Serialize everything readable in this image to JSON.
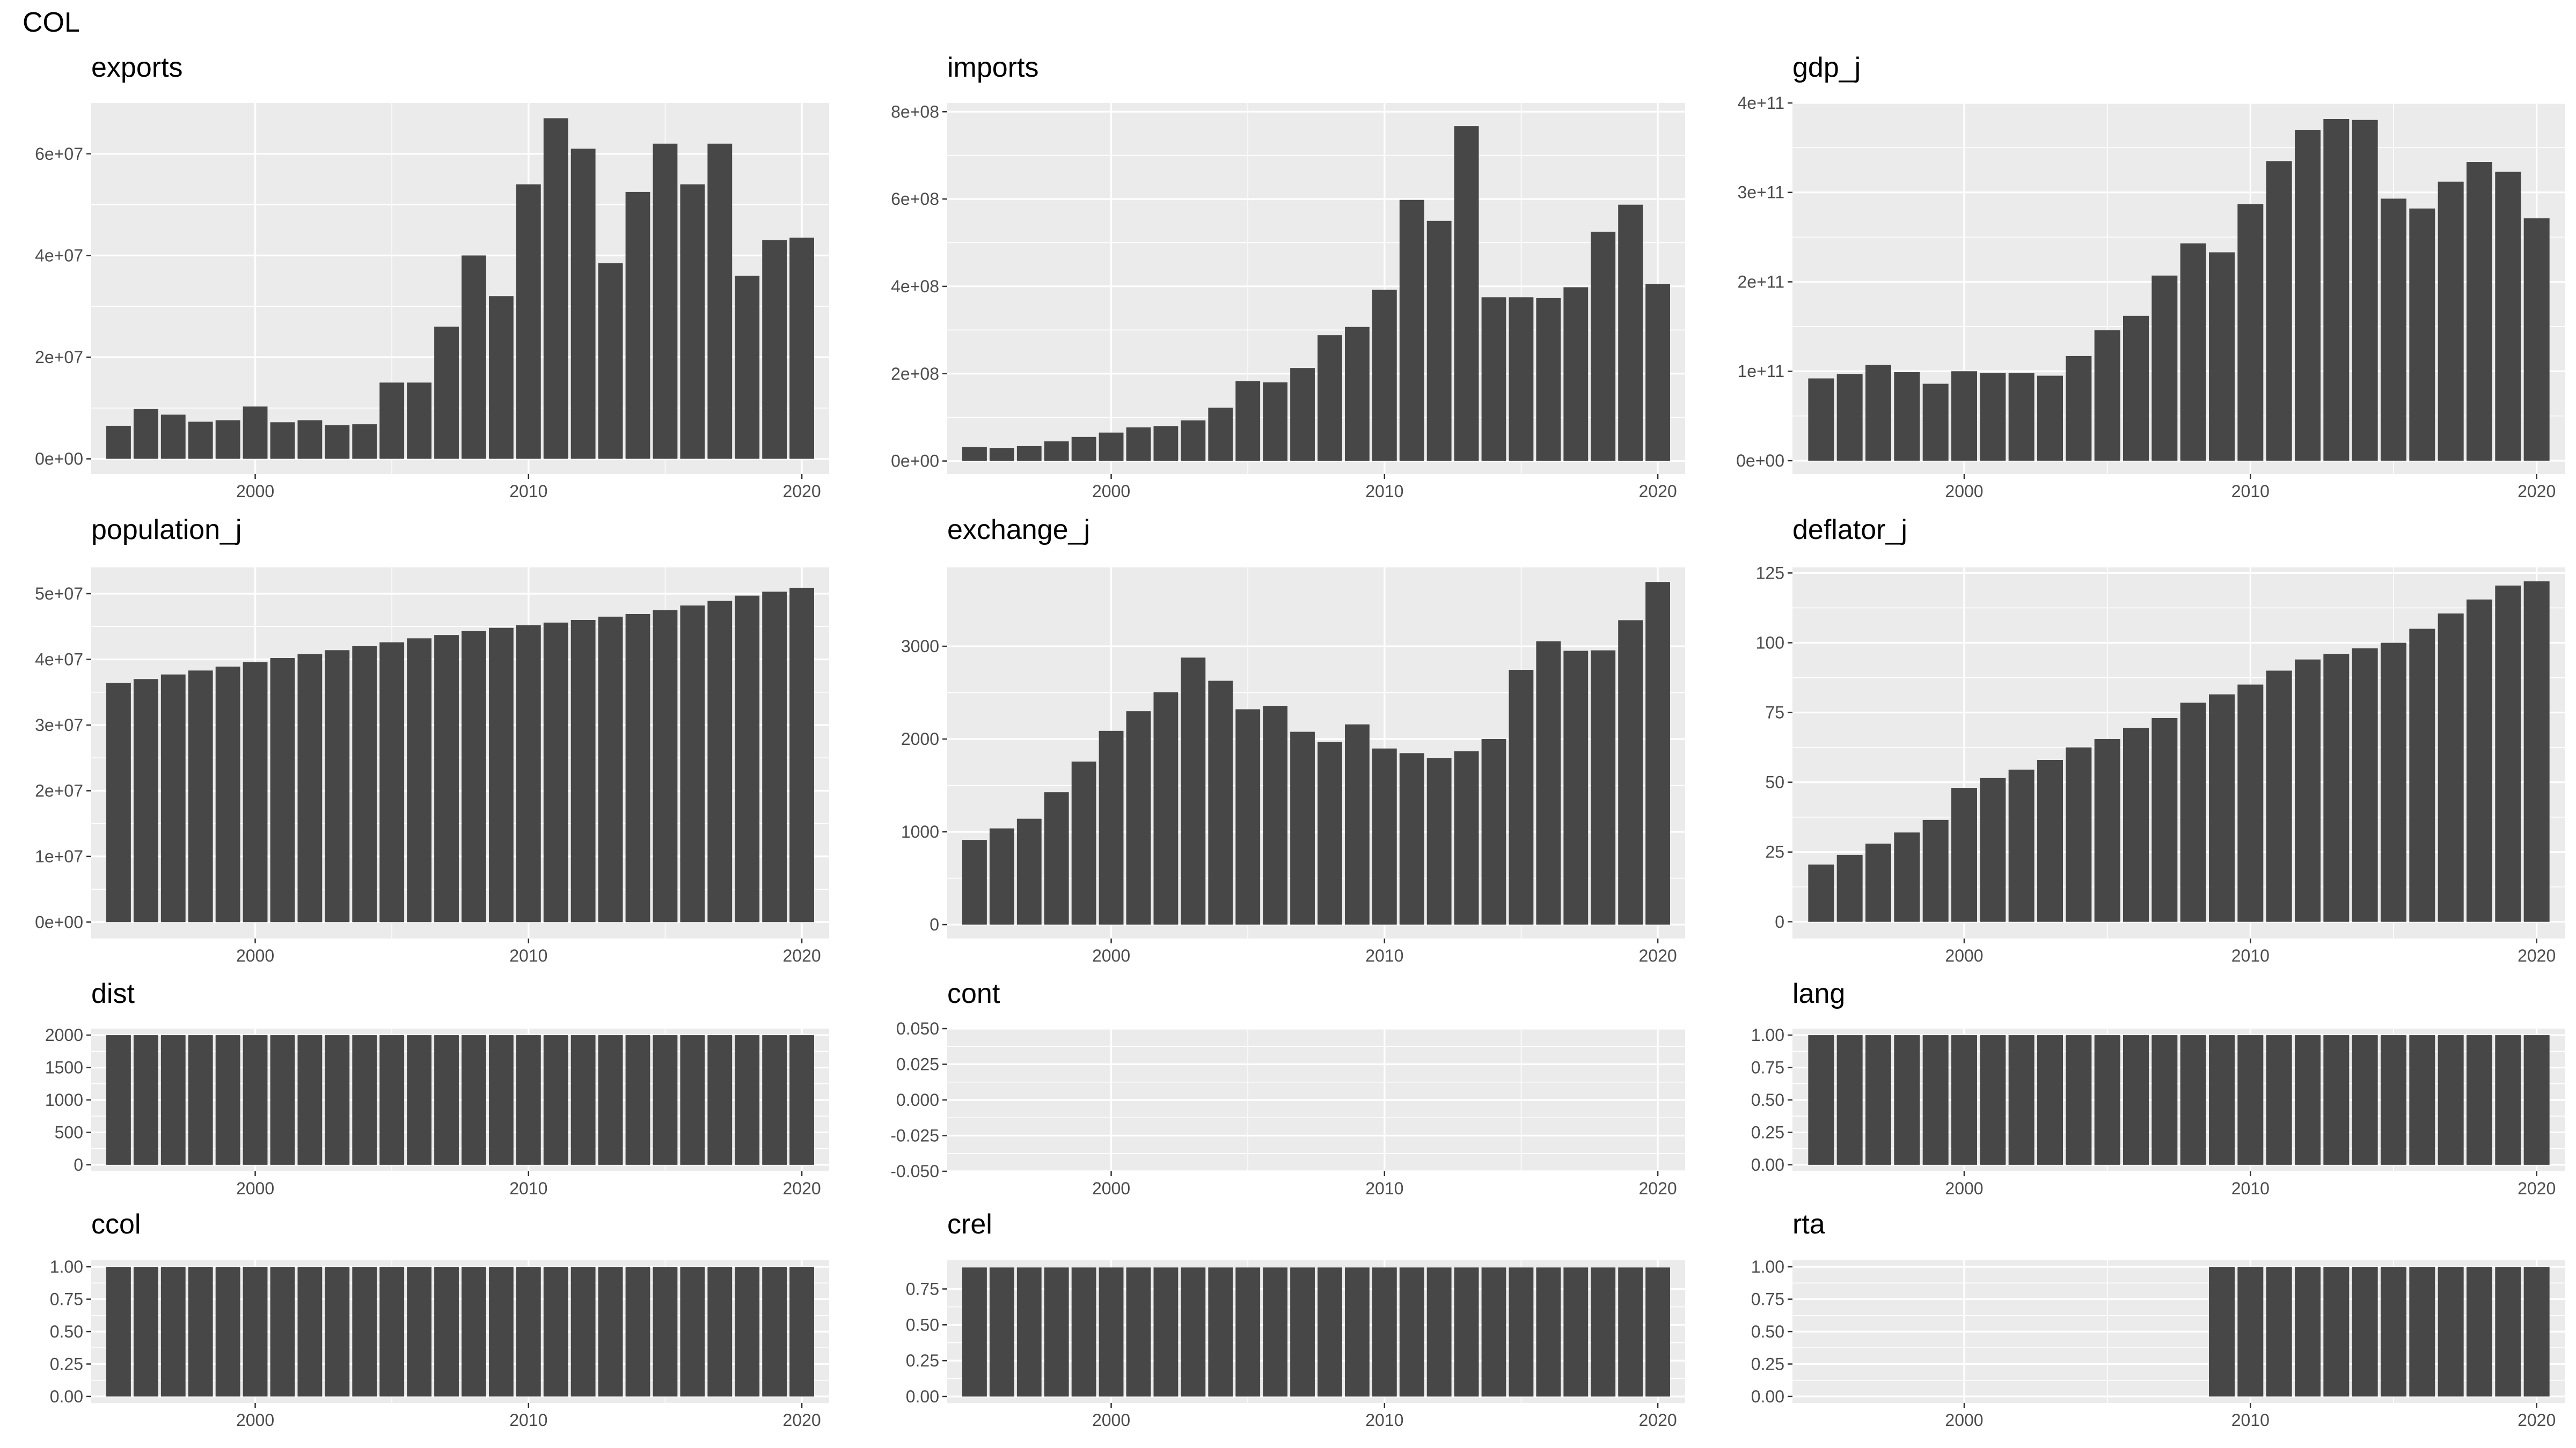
{
  "figure_title": "COL",
  "colors": {
    "panel_bg": "#ebebeb",
    "grid_major": "#ffffff",
    "bar": "#474747",
    "tick_text": "#4d4d4d"
  },
  "chart_data": [
    {
      "id": "exports",
      "type": "bar",
      "title": "exports",
      "grid": true,
      "xlim": [
        1994,
        2021
      ],
      "ylim": [
        -3000000,
        70000000
      ],
      "x_ticks": [
        2000,
        2010,
        2020
      ],
      "x_tick_labels": [
        "2000",
        "2010",
        "2020"
      ],
      "y_ticks": [
        0,
        20000000,
        40000000,
        60000000
      ],
      "y_tick_labels": [
        "0e+00",
        "2e+07",
        "4e+07",
        "6e+07"
      ],
      "x": [
        1995,
        1996,
        1997,
        1998,
        1999,
        2000,
        2001,
        2002,
        2003,
        2004,
        2005,
        2006,
        2007,
        2008,
        2009,
        2010,
        2011,
        2012,
        2013,
        2014,
        2015,
        2016,
        2017,
        2018,
        2019,
        2020
      ],
      "values": [
        6500000,
        9800000,
        8700000,
        7300000,
        7600000,
        10300000,
        7200000,
        7600000,
        6600000,
        6800000,
        15000000,
        15000000,
        26000000,
        40000000,
        32000000,
        54000000,
        67000000,
        61000000,
        38500000,
        52500000,
        62000000,
        54000000,
        62000000,
        36000000,
        43000000,
        43500000
      ]
    },
    {
      "id": "imports",
      "type": "bar",
      "title": "imports",
      "grid": true,
      "xlim": [
        1994,
        2021
      ],
      "ylim": [
        -30000000,
        820000000
      ],
      "x_ticks": [
        2000,
        2010,
        2020
      ],
      "x_tick_labels": [
        "2000",
        "2010",
        "2020"
      ],
      "y_ticks": [
        0,
        200000000,
        400000000,
        600000000,
        800000000
      ],
      "y_tick_labels": [
        "0e+00",
        "2e+08",
        "4e+08",
        "6e+08",
        "8e+08"
      ],
      "x": [
        1995,
        1996,
        1997,
        1998,
        1999,
        2000,
        2001,
        2002,
        2003,
        2004,
        2005,
        2006,
        2007,
        2008,
        2009,
        2010,
        2011,
        2012,
        2013,
        2014,
        2015,
        2016,
        2017,
        2018,
        2019,
        2020
      ],
      "values": [
        32000000,
        30000000,
        34000000,
        45000000,
        55000000,
        65000000,
        77000000,
        80000000,
        93000000,
        122000000,
        183000000,
        180000000,
        213000000,
        288000000,
        307000000,
        392000000,
        598000000,
        550000000,
        767000000,
        375000000,
        375000000,
        373000000,
        398000000,
        525000000,
        587000000,
        405000000
      ]
    },
    {
      "id": "gdp_j",
      "type": "bar",
      "title": "gdp_j",
      "grid": true,
      "xlim": [
        1994,
        2021
      ],
      "ylim": [
        -15000000000,
        400000000000
      ],
      "x_ticks": [
        2000,
        2010,
        2020
      ],
      "x_tick_labels": [
        "2000",
        "2010",
        "2020"
      ],
      "y_ticks": [
        0,
        100000000000,
        200000000000,
        300000000000,
        400000000000
      ],
      "y_tick_labels": [
        "0e+00",
        "1e+11",
        "2e+11",
        "3e+11",
        "4e+11"
      ],
      "x": [
        1995,
        1996,
        1997,
        1998,
        1999,
        2000,
        2001,
        2002,
        2003,
        2004,
        2005,
        2006,
        2007,
        2008,
        2009,
        2010,
        2011,
        2012,
        2013,
        2014,
        2015,
        2016,
        2017,
        2018,
        2019,
        2020
      ],
      "values": [
        92000000000,
        97000000000,
        107000000000,
        99000000000,
        86000000000,
        100000000000,
        98000000000,
        98000000000,
        95000000000,
        117000000000,
        146000000000,
        162000000000,
        207000000000,
        243000000000,
        233000000000,
        287000000000,
        335000000000,
        370000000000,
        382000000000,
        381000000000,
        293000000000,
        282000000000,
        312000000000,
        334000000000,
        323000000000,
        271000000000
      ]
    },
    {
      "id": "population_j",
      "type": "bar",
      "title": "population_j",
      "grid": true,
      "xlim": [
        1994,
        2021
      ],
      "ylim": [
        -2500000,
        54000000
      ],
      "x_ticks": [
        2000,
        2010,
        2020
      ],
      "x_tick_labels": [
        "2000",
        "2010",
        "2020"
      ],
      "y_ticks": [
        0,
        10000000,
        20000000,
        30000000,
        40000000,
        50000000
      ],
      "y_tick_labels": [
        "0e+00",
        "1e+07",
        "2e+07",
        "3e+07",
        "4e+07",
        "5e+07"
      ],
      "x": [
        1995,
        1996,
        1997,
        1998,
        1999,
        2000,
        2001,
        2002,
        2003,
        2004,
        2005,
        2006,
        2007,
        2008,
        2009,
        2010,
        2011,
        2012,
        2013,
        2014,
        2015,
        2016,
        2017,
        2018,
        2019,
        2020
      ],
      "values": [
        36400000,
        37000000,
        37700000,
        38300000,
        38900000,
        39600000,
        40200000,
        40800000,
        41400000,
        42000000,
        42600000,
        43200000,
        43700000,
        44300000,
        44800000,
        45200000,
        45600000,
        46000000,
        46500000,
        46900000,
        47500000,
        48200000,
        48900000,
        49700000,
        50300000,
        50900000
      ]
    },
    {
      "id": "exchange_j",
      "type": "bar",
      "title": "exchange_j",
      "grid": true,
      "xlim": [
        1994,
        2021
      ],
      "ylim": [
        -150,
        3850
      ],
      "x_ticks": [
        2000,
        2010,
        2020
      ],
      "x_tick_labels": [
        "2000",
        "2010",
        "2020"
      ],
      "y_ticks": [
        0,
        1000,
        2000,
        3000
      ],
      "y_tick_labels": [
        "0",
        "1000",
        "2000",
        "3000"
      ],
      "x": [
        1995,
        1996,
        1997,
        1998,
        1999,
        2000,
        2001,
        2002,
        2003,
        2004,
        2005,
        2006,
        2007,
        2008,
        2009,
        2010,
        2011,
        2012,
        2013,
        2014,
        2015,
        2016,
        2017,
        2018,
        2019,
        2020
      ],
      "values": [
        913,
        1037,
        1141,
        1427,
        1757,
        2088,
        2300,
        2504,
        2878,
        2628,
        2321,
        2358,
        2078,
        1967,
        2158,
        1898,
        1848,
        1797,
        1869,
        2001,
        2746,
        3054,
        2951,
        2956,
        3281,
        3693
      ]
    },
    {
      "id": "deflator_j",
      "type": "bar",
      "title": "deflator_j",
      "grid": true,
      "xlim": [
        1994,
        2021
      ],
      "ylim": [
        -6,
        127
      ],
      "x_ticks": [
        2000,
        2010,
        2020
      ],
      "x_tick_labels": [
        "2000",
        "2010",
        "2020"
      ],
      "y_ticks": [
        0,
        25,
        50,
        75,
        100,
        125
      ],
      "y_tick_labels": [
        "0",
        "25",
        "50",
        "75",
        "100",
        "125"
      ],
      "x": [
        1995,
        1996,
        1997,
        1998,
        1999,
        2000,
        2001,
        2002,
        2003,
        2004,
        2005,
        2006,
        2007,
        2008,
        2009,
        2010,
        2011,
        2012,
        2013,
        2014,
        2015,
        2016,
        2017,
        2018,
        2019,
        2020
      ],
      "values": [
        20.5,
        24,
        28,
        32,
        36.5,
        48,
        51.5,
        54.5,
        58,
        62.5,
        65.5,
        69.5,
        73,
        78.5,
        81.5,
        85,
        90,
        94,
        96,
        98,
        100,
        105,
        110.5,
        115.5,
        120.5,
        122
      ]
    },
    {
      "id": "dist",
      "type": "bar",
      "title": "dist",
      "grid": true,
      "xlim": [
        1994,
        2021
      ],
      "ylim": [
        -100,
        2100
      ],
      "x_ticks": [
        2000,
        2010,
        2020
      ],
      "x_tick_labels": [
        "2000",
        "2010",
        "2020"
      ],
      "y_ticks": [
        0,
        500,
        1000,
        1500,
        2000
      ],
      "y_tick_labels": [
        "0",
        "500",
        "1000",
        "1500",
        "2000"
      ],
      "x": [
        1995,
        1996,
        1997,
        1998,
        1999,
        2000,
        2001,
        2002,
        2003,
        2004,
        2005,
        2006,
        2007,
        2008,
        2009,
        2010,
        2011,
        2012,
        2013,
        2014,
        2015,
        2016,
        2017,
        2018,
        2019,
        2020
      ],
      "values": [
        2000,
        2000,
        2000,
        2000,
        2000,
        2000,
        2000,
        2000,
        2000,
        2000,
        2000,
        2000,
        2000,
        2000,
        2000,
        2000,
        2000,
        2000,
        2000,
        2000,
        2000,
        2000,
        2000,
        2000,
        2000,
        2000
      ]
    },
    {
      "id": "cont",
      "type": "bar",
      "title": "cont",
      "grid": true,
      "xlim": [
        1994,
        2021
      ],
      "ylim": [
        -0.05,
        0.05
      ],
      "x_ticks": [
        2000,
        2010,
        2020
      ],
      "x_tick_labels": [
        "2000",
        "2010",
        "2020"
      ],
      "y_ticks": [
        -0.05,
        -0.025,
        0,
        0.025,
        0.05
      ],
      "y_tick_labels": [
        "-0.050",
        "-0.025",
        "0.000",
        "0.025",
        "0.050"
      ],
      "x": [
        1995,
        1996,
        1997,
        1998,
        1999,
        2000,
        2001,
        2002,
        2003,
        2004,
        2005,
        2006,
        2007,
        2008,
        2009,
        2010,
        2011,
        2012,
        2013,
        2014,
        2015,
        2016,
        2017,
        2018,
        2019,
        2020
      ],
      "values": [
        0,
        0,
        0,
        0,
        0,
        0,
        0,
        0,
        0,
        0,
        0,
        0,
        0,
        0,
        0,
        0,
        0,
        0,
        0,
        0,
        0,
        0,
        0,
        0,
        0,
        0
      ]
    },
    {
      "id": "lang",
      "type": "bar",
      "title": "lang",
      "grid": true,
      "xlim": [
        1994,
        2021
      ],
      "ylim": [
        -0.05,
        1.05
      ],
      "x_ticks": [
        2000,
        2010,
        2020
      ],
      "x_tick_labels": [
        "2000",
        "2010",
        "2020"
      ],
      "y_ticks": [
        0,
        0.25,
        0.5,
        0.75,
        1
      ],
      "y_tick_labels": [
        "0.00",
        "0.25",
        "0.50",
        "0.75",
        "1.00"
      ],
      "x": [
        1995,
        1996,
        1997,
        1998,
        1999,
        2000,
        2001,
        2002,
        2003,
        2004,
        2005,
        2006,
        2007,
        2008,
        2009,
        2010,
        2011,
        2012,
        2013,
        2014,
        2015,
        2016,
        2017,
        2018,
        2019,
        2020
      ],
      "values": [
        1,
        1,
        1,
        1,
        1,
        1,
        1,
        1,
        1,
        1,
        1,
        1,
        1,
        1,
        1,
        1,
        1,
        1,
        1,
        1,
        1,
        1,
        1,
        1,
        1,
        1
      ]
    },
    {
      "id": "ccol",
      "type": "bar",
      "title": "ccol",
      "grid": true,
      "xlim": [
        1994,
        2021
      ],
      "ylim": [
        -0.05,
        1.05
      ],
      "x_ticks": [
        2000,
        2010,
        2020
      ],
      "x_tick_labels": [
        "2000",
        "2010",
        "2020"
      ],
      "y_ticks": [
        0,
        0.25,
        0.5,
        0.75,
        1
      ],
      "y_tick_labels": [
        "0.00",
        "0.25",
        "0.50",
        "0.75",
        "1.00"
      ],
      "x": [
        1995,
        1996,
        1997,
        1998,
        1999,
        2000,
        2001,
        2002,
        2003,
        2004,
        2005,
        2006,
        2007,
        2008,
        2009,
        2010,
        2011,
        2012,
        2013,
        2014,
        2015,
        2016,
        2017,
        2018,
        2019,
        2020
      ],
      "values": [
        1,
        1,
        1,
        1,
        1,
        1,
        1,
        1,
        1,
        1,
        1,
        1,
        1,
        1,
        1,
        1,
        1,
        1,
        1,
        1,
        1,
        1,
        1,
        1,
        1,
        1
      ]
    },
    {
      "id": "crel",
      "type": "bar",
      "title": "crel",
      "grid": true,
      "xlim": [
        1994,
        2021
      ],
      "ylim": [
        -0.045,
        0.95
      ],
      "x_ticks": [
        2000,
        2010,
        2020
      ],
      "x_tick_labels": [
        "2000",
        "2010",
        "2020"
      ],
      "y_ticks": [
        0,
        0.25,
        0.5,
        0.75
      ],
      "y_tick_labels": [
        "0.00",
        "0.25",
        "0.50",
        "0.75"
      ],
      "x": [
        1995,
        1996,
        1997,
        1998,
        1999,
        2000,
        2001,
        2002,
        2003,
        2004,
        2005,
        2006,
        2007,
        2008,
        2009,
        2010,
        2011,
        2012,
        2013,
        2014,
        2015,
        2016,
        2017,
        2018,
        2019,
        2020
      ],
      "values": [
        0.9,
        0.9,
        0.9,
        0.9,
        0.9,
        0.9,
        0.9,
        0.9,
        0.9,
        0.9,
        0.9,
        0.9,
        0.9,
        0.9,
        0.9,
        0.9,
        0.9,
        0.9,
        0.9,
        0.9,
        0.9,
        0.9,
        0.9,
        0.9,
        0.9,
        0.9
      ]
    },
    {
      "id": "rta",
      "type": "bar",
      "title": "rta",
      "grid": true,
      "xlim": [
        1994,
        2021
      ],
      "ylim": [
        -0.05,
        1.05
      ],
      "x_ticks": [
        2000,
        2010,
        2020
      ],
      "x_tick_labels": [
        "2000",
        "2010",
        "2020"
      ],
      "y_ticks": [
        0,
        0.25,
        0.5,
        0.75,
        1
      ],
      "y_tick_labels": [
        "0.00",
        "0.25",
        "0.50",
        "0.75",
        "1.00"
      ],
      "x": [
        2009,
        2010,
        2011,
        2012,
        2013,
        2014,
        2015,
        2016,
        2017,
        2018,
        2019,
        2020
      ],
      "values": [
        1,
        1,
        1,
        1,
        1,
        1,
        1,
        1,
        1,
        1,
        1,
        1
      ]
    }
  ]
}
